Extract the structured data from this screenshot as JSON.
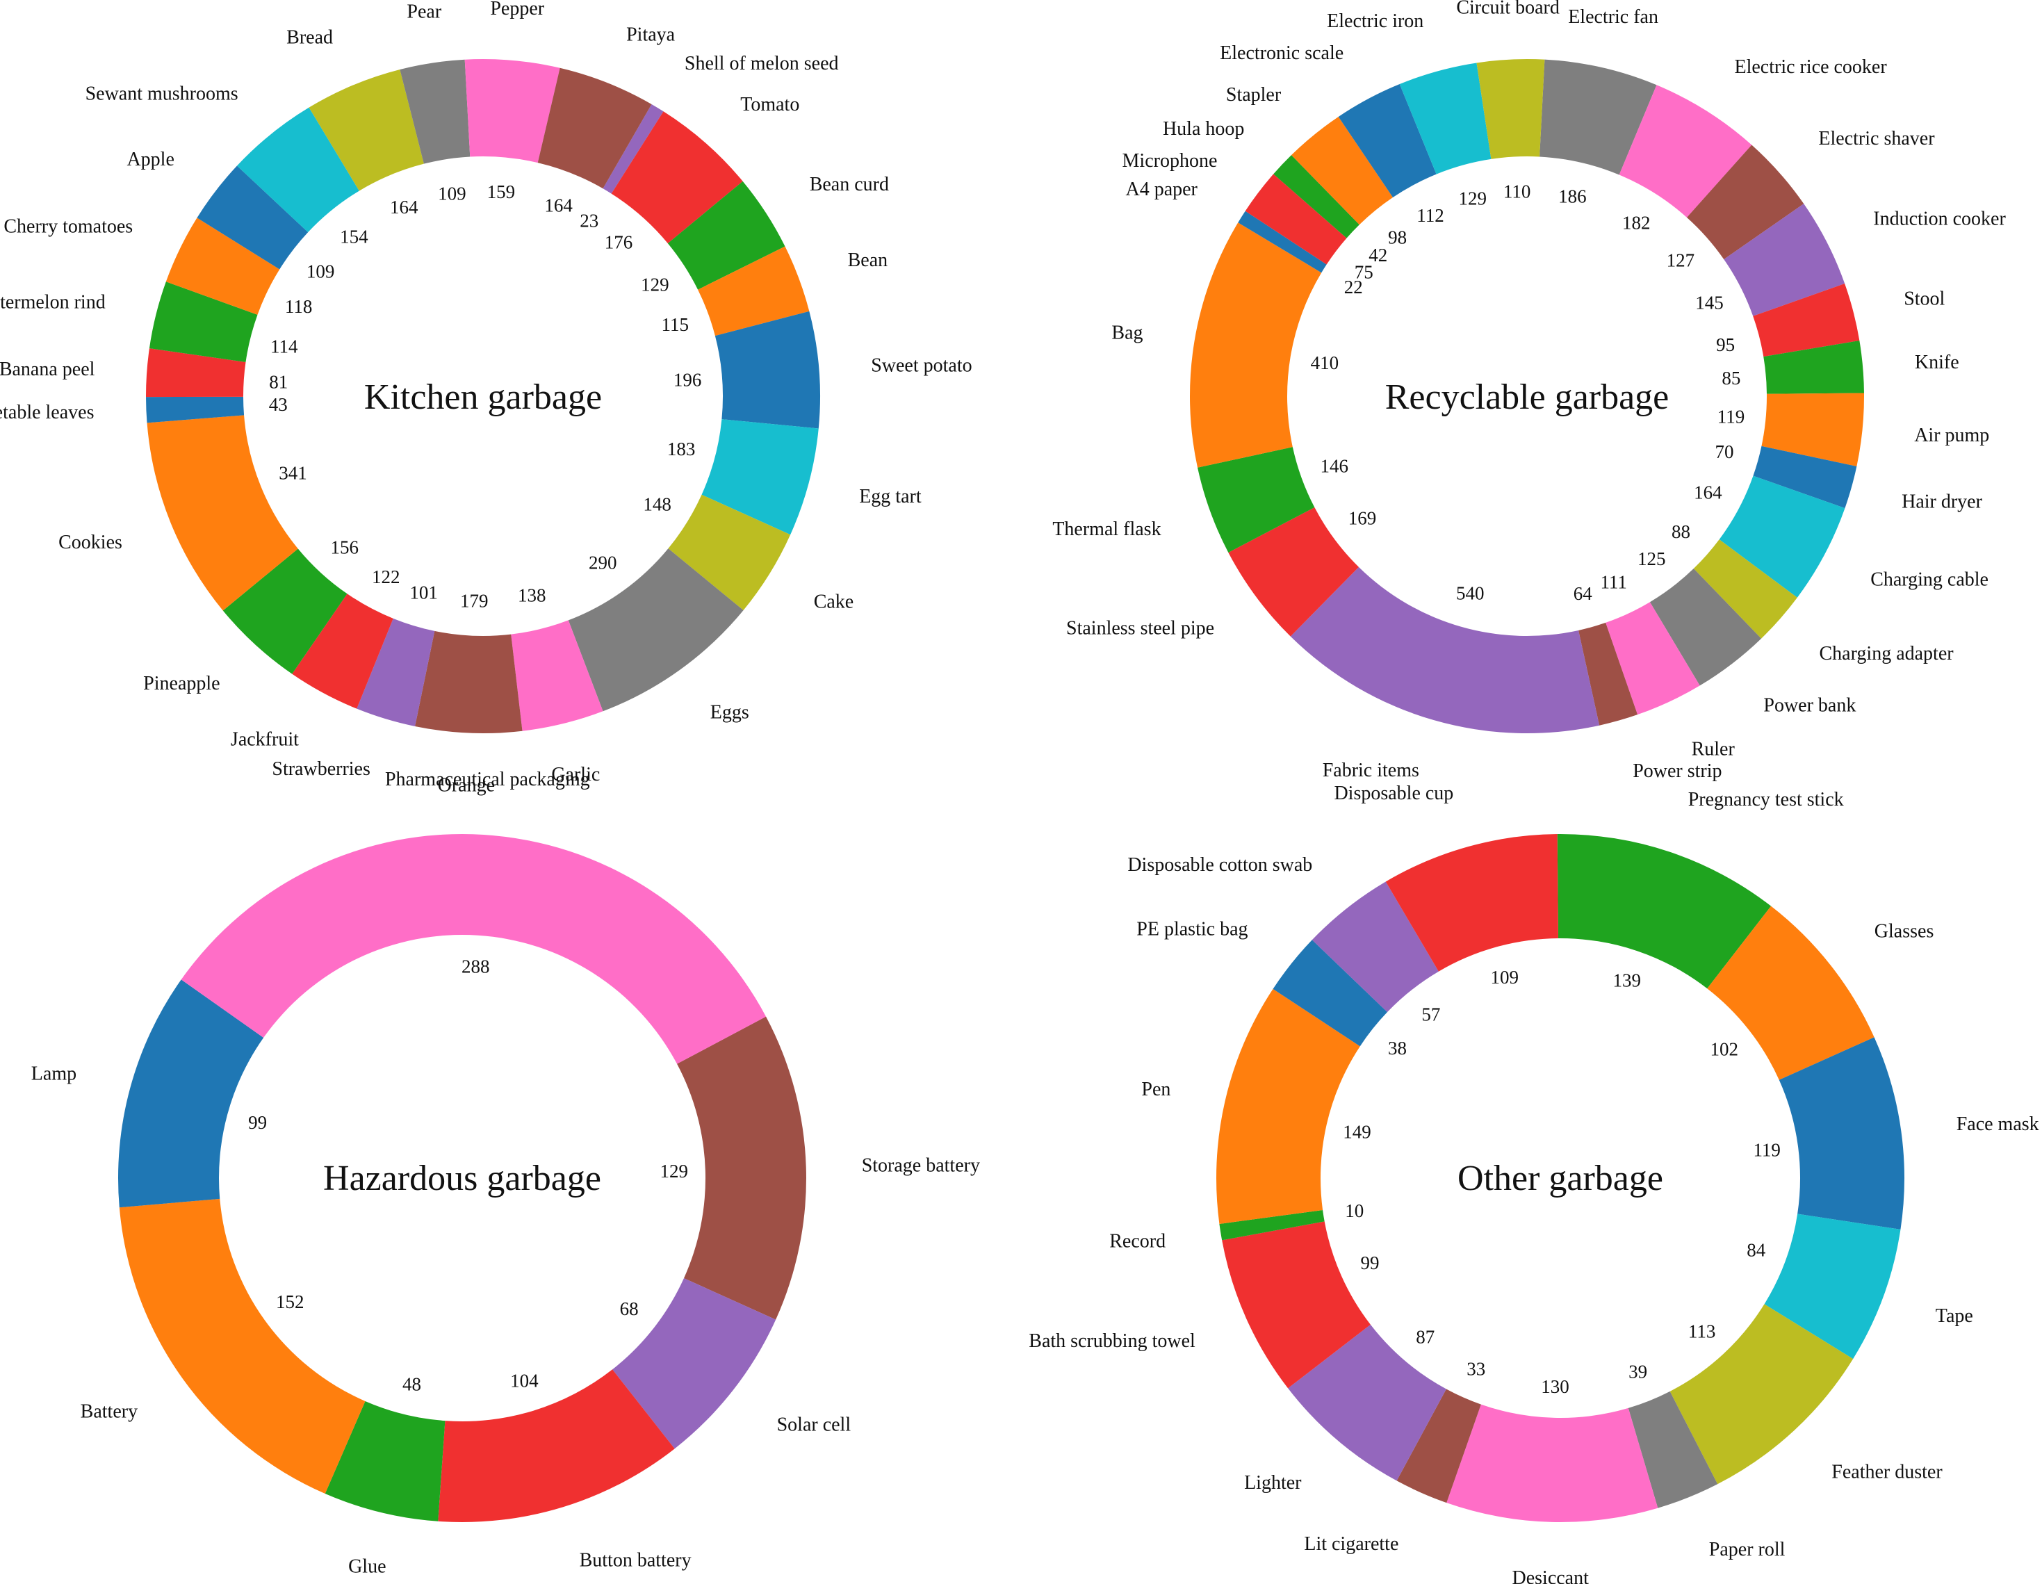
{
  "chart_data": [
    {
      "type": "donut",
      "title": "Kitchen garbage",
      "categories": [
        "Shell of melon seed",
        "Tomato",
        "Bean curd",
        "Bean",
        "Sweet potato",
        "Egg tart",
        "Cake",
        "Eggs",
        "Garlic",
        "Orange",
        "Strawberries",
        "Jackfruit",
        "Pineapple",
        "Cookies",
        "Vegetable leaves",
        "Banana peel",
        "Watermelon rind",
        "Cherry tomatoes",
        "Apple",
        "Sewant mushrooms",
        "Bread",
        "Pear",
        "Pepper",
        "Pitaya"
      ],
      "values": [
        23,
        176,
        129,
        115,
        196,
        183,
        148,
        290,
        138,
        179,
        101,
        122,
        156,
        341,
        43,
        81,
        114,
        118,
        109,
        154,
        164,
        109,
        159,
        164
      ],
      "colors": [
        "#9467bd",
        "#f03030",
        "#1fa41f",
        "#ff7f0e",
        "#1f77b4",
        "#17becf",
        "#bcbd22",
        "#7f7f7f",
        "#ff6ec7",
        "#9e5046",
        "#9467bd",
        "#f03030",
        "#1fa41f",
        "#ff7f0e",
        "#1f77b4",
        "#f03030",
        "#1fa41f",
        "#ff7f0e",
        "#1f77b4",
        "#17becf",
        "#bcbd22",
        "#7f7f7f",
        "#ff6ec7",
        "#9e5046"
      ]
    },
    {
      "type": "donut",
      "title": "Recyclable garbage",
      "categories": [
        "Electric fan",
        "Electric rice cooker",
        "Electric shaver",
        "Induction cooker",
        "Stool",
        "Knife",
        "Air pump",
        "Hair dryer",
        "Charging cable",
        "Charging adapter",
        "Power bank",
        "Ruler",
        "Power strip",
        "Fabric items",
        "Stainless steel pipe",
        "Thermal flask",
        "Bag",
        "A4 paper",
        "Microphone",
        "Hula hoop",
        "Stapler",
        "Electronic scale",
        "Electric iron",
        "Circuit board"
      ],
      "values": [
        186,
        182,
        127,
        145,
        95,
        85,
        119,
        70,
        164,
        88,
        125,
        111,
        64,
        540,
        169,
        146,
        410,
        22,
        75,
        42,
        98,
        112,
        129,
        110
      ],
      "colors": [
        "#7f7f7f",
        "#ff6ec7",
        "#9e5046",
        "#9467bd",
        "#f03030",
        "#1fa41f",
        "#ff7f0e",
        "#1f77b4",
        "#17becf",
        "#bcbd22",
        "#7f7f7f",
        "#ff6ec7",
        "#9e5046",
        "#9467bd",
        "#f03030",
        "#1fa41f",
        "#ff7f0e",
        "#1f77b4",
        "#f03030",
        "#1fa41f",
        "#ff7f0e",
        "#1f77b4",
        "#17becf",
        "#bcbd22"
      ]
    },
    {
      "type": "donut",
      "title": "Hazardous garbage",
      "categories": [
        "Storage battery",
        "Solar cell",
        "Button battery",
        "Glue",
        "Battery",
        "Lamp",
        "Pharmaceutical packaging"
      ],
      "values": [
        129,
        68,
        104,
        48,
        152,
        99,
        288
      ],
      "colors": [
        "#9e5046",
        "#9467bd",
        "#f03030",
        "#1fa41f",
        "#ff7f0e",
        "#1f77b4",
        "#ff6ec7"
      ]
    },
    {
      "type": "donut",
      "title": "Other garbage",
      "categories": [
        "Pregnancy test stick",
        "Glasses",
        "Face mask",
        "Tape",
        "Feather duster",
        "Paper roll",
        "Desiccant",
        "Lit cigarette",
        "Lighter",
        "Bath scrubbing towel",
        "Record",
        "Pen",
        "PE plastic bag",
        "Disposable cotton swab",
        "Disposable cup"
      ],
      "values": [
        139,
        102,
        119,
        84,
        113,
        39,
        130,
        33,
        87,
        99,
        10,
        149,
        38,
        57,
        109
      ],
      "colors": [
        "#1fa41f",
        "#ff7f0e",
        "#1f77b4",
        "#17becf",
        "#bcbd22",
        "#7f7f7f",
        "#ff6ec7",
        "#9e5046",
        "#9467bd",
        "#f03030",
        "#1fa41f",
        "#ff7f0e",
        "#1f77b4",
        "#9467bd",
        "#f03030"
      ]
    }
  ]
}
